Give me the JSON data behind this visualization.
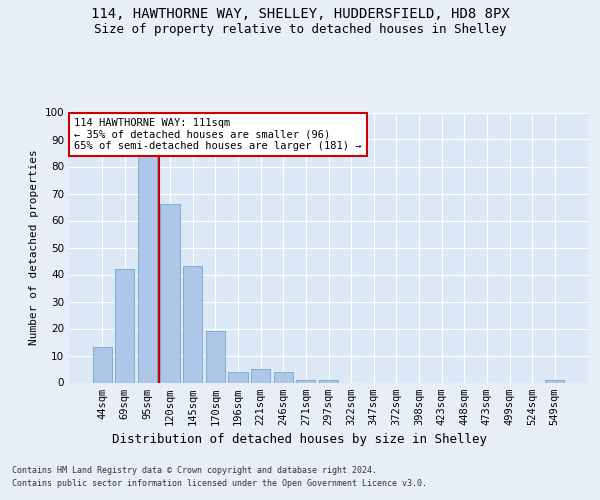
{
  "title": "114, HAWTHORNE WAY, SHELLEY, HUDDERSFIELD, HD8 8PX",
  "subtitle": "Size of property relative to detached houses in Shelley",
  "xlabel": "Distribution of detached houses by size in Shelley",
  "ylabel": "Number of detached properties",
  "categories": [
    "44sqm",
    "69sqm",
    "95sqm",
    "120sqm",
    "145sqm",
    "170sqm",
    "196sqm",
    "221sqm",
    "246sqm",
    "271sqm",
    "297sqm",
    "322sqm",
    "347sqm",
    "372sqm",
    "398sqm",
    "423sqm",
    "448sqm",
    "473sqm",
    "499sqm",
    "524sqm",
    "549sqm"
  ],
  "values": [
    13,
    42,
    84,
    66,
    43,
    19,
    4,
    5,
    4,
    1,
    1,
    0,
    0,
    0,
    0,
    0,
    0,
    0,
    0,
    0,
    1
  ],
  "bar_color": "#aec6e8",
  "bar_edge_color": "#7aaed0",
  "vline_x_index": 2.5,
  "vline_color": "#cc0000",
  "annotation_text": "114 HAWTHORNE WAY: 111sqm\n← 35% of detached houses are smaller (96)\n65% of semi-detached houses are larger (181) →",
  "annotation_box_color": "#ffffff",
  "annotation_box_edge_color": "#cc0000",
  "bg_color": "#e8eef8",
  "plot_bg_color": "#dce8f5",
  "footer_line1": "Contains HM Land Registry data © Crown copyright and database right 2024.",
  "footer_line2": "Contains public sector information licensed under the Open Government Licence v3.0.",
  "ylim": [
    0,
    100
  ],
  "title_fontsize": 10,
  "subtitle_fontsize": 9,
  "tick_fontsize": 7.5,
  "ylabel_fontsize": 8,
  "xlabel_fontsize": 9,
  "annotation_fontsize": 7.5,
  "footer_fontsize": 6
}
